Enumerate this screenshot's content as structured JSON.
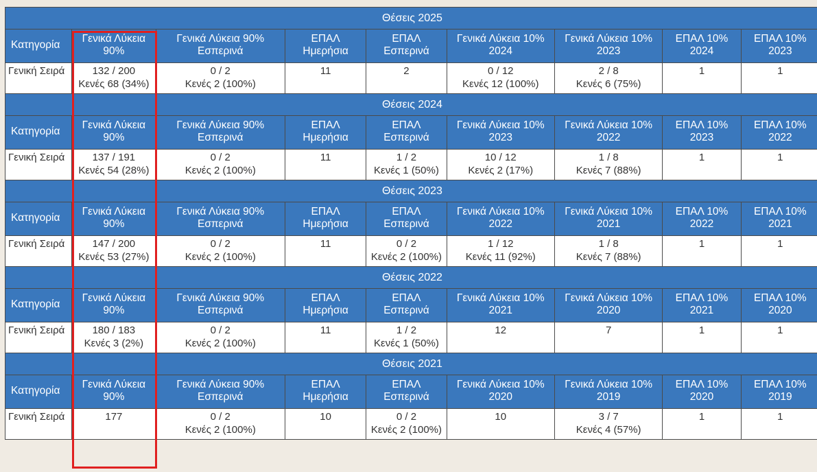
{
  "headers": {
    "category": "Κατηγορία",
    "cols": [
      "Γενικά Λύκεια 90%",
      "Γενικά Λύκεια 90% Εσπερινά",
      "ΕΠΑΛ Ημερήσια",
      "ΕΠΑΛ Εσπερινά"
    ]
  },
  "blocks": [
    {
      "title": "Θέσεις 2025",
      "col5": "Γενικά Λύκεια 10% 2024",
      "col6": "Γενικά Λύκεια 10% 2023",
      "col7": "ΕΠΑΛ 10% 2024",
      "col8": "ΕΠΑΛ 10% 2023",
      "row": {
        "category": "Γενική Σειρά",
        "cells": [
          [
            "132 / 200",
            "Κενές 68 (34%)"
          ],
          [
            "0 / 2",
            "Κενές 2 (100%)"
          ],
          [
            "11"
          ],
          [
            "2"
          ],
          [
            "0 / 12",
            "Κενές 12 (100%)"
          ],
          [
            "2 / 8",
            "Κενές 6 (75%)"
          ],
          [
            "1"
          ],
          [
            "1"
          ]
        ]
      }
    },
    {
      "title": "Θέσεις 2024",
      "col5": "Γενικά Λύκεια 10% 2023",
      "col6": "Γενικά Λύκεια 10% 2022",
      "col7": "ΕΠΑΛ 10% 2023",
      "col8": "ΕΠΑΛ 10% 2022",
      "row": {
        "category": "Γενική Σειρά",
        "cells": [
          [
            "137 / 191",
            "Κενές 54 (28%)"
          ],
          [
            "0 / 2",
            "Κενές 2 (100%)"
          ],
          [
            "11"
          ],
          [
            "1 / 2",
            "Κενές 1 (50%)"
          ],
          [
            "10 / 12",
            "Κενές 2 (17%)"
          ],
          [
            "1 / 8",
            "Κενές 7 (88%)"
          ],
          [
            "1"
          ],
          [
            "1"
          ]
        ]
      }
    },
    {
      "title": "Θέσεις 2023",
      "col5": "Γενικά Λύκεια 10% 2022",
      "col6": "Γενικά Λύκεια 10% 2021",
      "col7": "ΕΠΑΛ 10% 2022",
      "col8": "ΕΠΑΛ 10% 2021",
      "row": {
        "category": "Γενική Σειρά",
        "cells": [
          [
            "147 / 200",
            "Κενές 53 (27%)"
          ],
          [
            "0 / 2",
            "Κενές 2 (100%)"
          ],
          [
            "11"
          ],
          [
            "0 / 2",
            "Κενές 2 (100%)"
          ],
          [
            "1 / 12",
            "Κενές 11 (92%)"
          ],
          [
            "1 / 8",
            "Κενές 7 (88%)"
          ],
          [
            "1"
          ],
          [
            "1"
          ]
        ]
      }
    },
    {
      "title": "Θέσεις 2022",
      "col5": "Γενικά Λύκεια 10% 2021",
      "col6": "Γενικά Λύκεια 10% 2020",
      "col7": "ΕΠΑΛ 10% 2021",
      "col8": "ΕΠΑΛ 10% 2020",
      "row": {
        "category": "Γενική Σειρά",
        "cells": [
          [
            "180 / 183",
            "Κενές 3 (2%)"
          ],
          [
            "0 / 2",
            "Κενές 2 (100%)"
          ],
          [
            "11"
          ],
          [
            "1 / 2",
            "Κενές 1 (50%)"
          ],
          [
            "12"
          ],
          [
            "7"
          ],
          [
            "1"
          ],
          [
            "1"
          ]
        ]
      }
    },
    {
      "title": "Θέσεις 2021",
      "col5": "Γενικά Λύκεια 10% 2020",
      "col6": "Γενικά Λύκεια 10% 2019",
      "col7": "ΕΠΑΛ 10% 2020",
      "col8": "ΕΠΑΛ 10% 2019",
      "row": {
        "category": "Γενική Σειρά",
        "cells": [
          [
            "177"
          ],
          [
            "0 / 2",
            "Κενές 2 (100%)"
          ],
          [
            "10"
          ],
          [
            "0 / 2",
            "Κενές 2 (100%)"
          ],
          [
            "10"
          ],
          [
            "3 / 7",
            "Κενές 4 (57%)"
          ],
          [
            "1"
          ],
          [
            "1"
          ]
        ]
      }
    }
  ],
  "colors": {
    "header_bg": "#3a78bd",
    "highlight": "#e02020"
  }
}
